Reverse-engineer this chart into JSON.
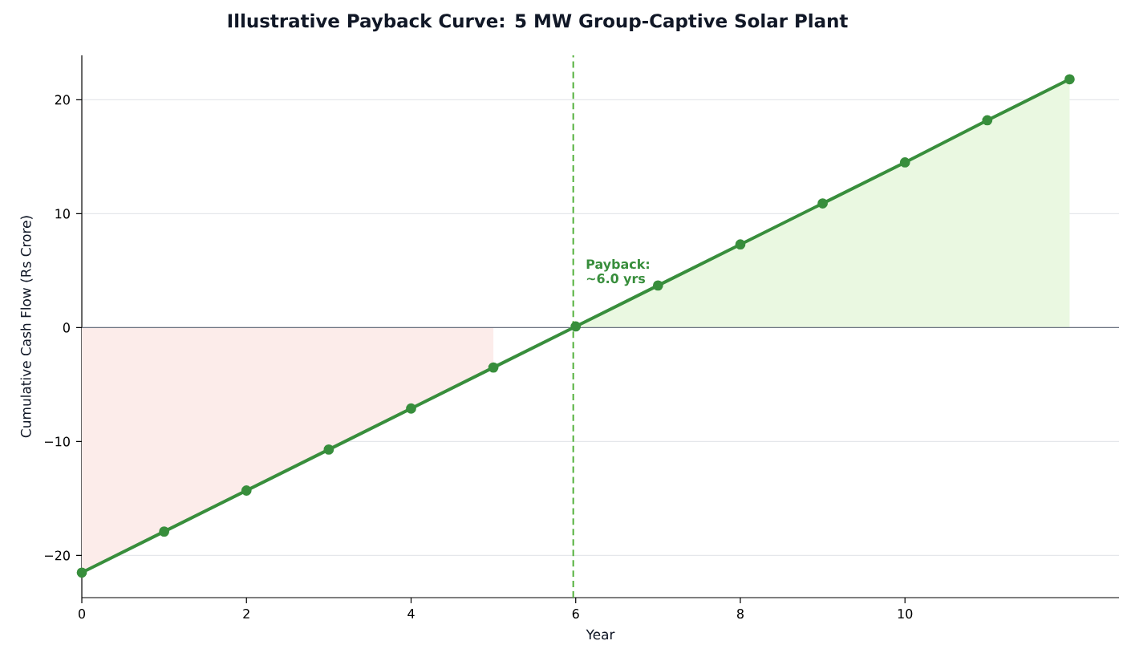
{
  "chart_data": {
    "type": "line",
    "title": "Illustrative Payback Curve: 5 MW Group-Captive Solar Plant",
    "xlabel": "Year",
    "ylabel": "Cumulative Cash Flow (Rs Crore)",
    "x": [
      0,
      1,
      2,
      3,
      4,
      5,
      6,
      7,
      8,
      9,
      10,
      11,
      12
    ],
    "series": [
      {
        "type": "area",
        "color": "#fcecea",
        "values": [
          -21.5,
          -17.9,
          -14.3,
          -10.7,
          -7.1,
          -3.5,
          null,
          null,
          null,
          null,
          null,
          null,
          null
        ]
      },
      {
        "type": "area",
        "color": "#eaf8e1",
        "values": [
          null,
          null,
          null,
          null,
          null,
          null,
          0.1,
          3.7,
          7.3,
          10.9,
          14.5,
          18.2,
          21.8
        ]
      },
      {
        "color": "#388e3c",
        "marker": "circle",
        "values": [
          -21.5,
          -17.9,
          -14.3,
          -10.7,
          -7.1,
          -3.5,
          0.1,
          3.7,
          7.3,
          10.9,
          14.5,
          18.2,
          21.8
        ]
      }
    ],
    "xlim": [
      0,
      12.6
    ],
    "ylim": [
      -23.7,
      23.9
    ],
    "xticks": [
      0,
      2,
      4,
      6,
      8,
      10
    ],
    "yticks": [
      {
        "value": -20,
        "label": "−20"
      },
      {
        "value": -10,
        "label": "−10"
      },
      0,
      10,
      20
    ],
    "grid": "y",
    "ref_lines": [
      {
        "axis": "y",
        "value": 0,
        "color": "#6b7280"
      },
      {
        "axis": "x",
        "value": 5.97,
        "color": "#52b03a",
        "line_style": "dashed"
      }
    ],
    "annotations": [
      "Payback: ~6.0 yrs"
    ]
  }
}
